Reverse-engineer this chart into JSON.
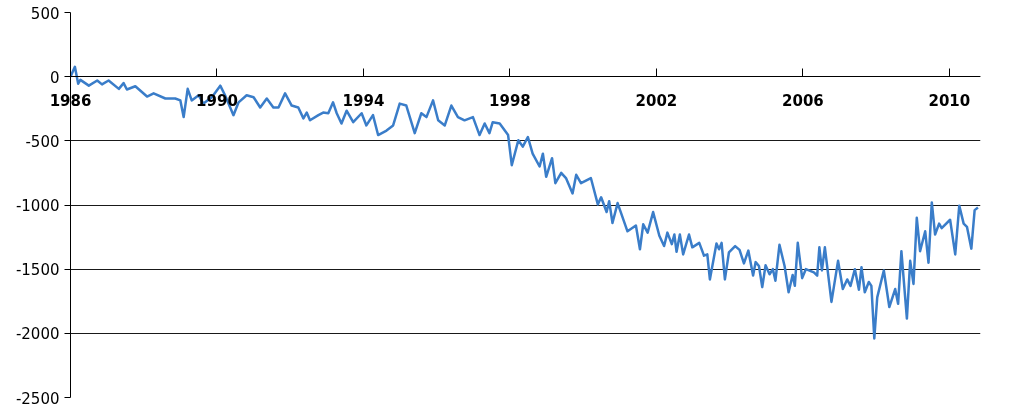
{
  "chart_data": {
    "type": "line",
    "xlim": [
      1986,
      2010.85
    ],
    "ylim": [
      -2500,
      500
    ],
    "xticks": [
      1986,
      1990,
      1994,
      1998,
      2002,
      2006,
      2010
    ],
    "yticks": [
      -2500,
      -2000,
      -1500,
      -1000,
      -500,
      0,
      500
    ],
    "grid": "y",
    "marker": "none",
    "line_style": "solid",
    "x": [
      1986.0,
      1986.12,
      1986.21,
      1986.27,
      1986.5,
      1986.73,
      1986.86,
      1987.04,
      1987.32,
      1987.45,
      1987.54,
      1987.77,
      1988.09,
      1988.27,
      1988.59,
      1988.86,
      1989.0,
      1989.09,
      1989.2,
      1989.31,
      1989.5,
      1989.63,
      1989.86,
      1990.09,
      1990.22,
      1990.45,
      1990.59,
      1990.81,
      1991.0,
      1991.18,
      1991.36,
      1991.54,
      1991.68,
      1991.86,
      1992.04,
      1992.22,
      1992.36,
      1992.45,
      1992.54,
      1992.77,
      1992.9,
      1993.04,
      1993.17,
      1993.27,
      1993.4,
      1993.54,
      1993.72,
      1993.95,
      1994.08,
      1994.26,
      1994.4,
      1994.63,
      1994.81,
      1994.99,
      1995.17,
      1995.4,
      1995.58,
      1995.72,
      1995.9,
      1996.04,
      1996.22,
      1996.4,
      1996.58,
      1996.76,
      1996.99,
      1997.17,
      1997.31,
      1997.44,
      1997.53,
      1997.72,
      1997.95,
      1998.05,
      1998.23,
      1998.35,
      1998.49,
      1998.62,
      1998.81,
      1998.9,
      1998.99,
      1999.15,
      1999.24,
      1999.4,
      1999.53,
      1999.71,
      1999.81,
      1999.94,
      2000.21,
      2000.4,
      2000.49,
      2000.64,
      2000.71,
      2000.8,
      2000.94,
      2001.21,
      2001.44,
      2001.55,
      2001.64,
      2001.76,
      2001.91,
      2002.08,
      2002.21,
      2002.3,
      2002.42,
      2002.49,
      2002.55,
      2002.64,
      2002.73,
      2002.89,
      2002.98,
      2003.17,
      2003.3,
      2003.39,
      2003.46,
      2003.64,
      2003.71,
      2003.78,
      2003.87,
      2003.98,
      2004.15,
      2004.27,
      2004.39,
      2004.51,
      2004.64,
      2004.71,
      2004.8,
      2004.89,
      2004.98,
      2005.09,
      2005.18,
      2005.25,
      2005.36,
      2005.5,
      2005.61,
      2005.72,
      2005.78,
      2005.86,
      2005.98,
      2006.08,
      2006.3,
      2006.39,
      2006.45,
      2006.52,
      2006.6,
      2006.78,
      2006.96,
      2007.09,
      2007.21,
      2007.3,
      2007.42,
      2007.53,
      2007.6,
      2007.69,
      2007.8,
      2007.87,
      2007.95,
      2008.03,
      2008.21,
      2008.36,
      2008.52,
      2008.6,
      2008.69,
      2008.84,
      2008.93,
      2009.02,
      2009.11,
      2009.2,
      2009.34,
      2009.43,
      2009.52,
      2009.61,
      2009.72,
      2009.79,
      2010.02,
      2010.16,
      2010.27,
      2010.39,
      2010.48,
      2010.6,
      2010.69,
      2010.78
    ],
    "series": [
      {
        "color": "#3a7dc9",
        "values": [
          0,
          77,
          -55,
          -25,
          -70,
          -30,
          -60,
          -30,
          -95,
          -50,
          -100,
          -75,
          -155,
          -130,
          -170,
          -170,
          -185,
          -315,
          -95,
          -185,
          -145,
          -210,
          -160,
          -70,
          -145,
          -300,
          -200,
          -145,
          -160,
          -240,
          -170,
          -240,
          -240,
          -130,
          -225,
          -240,
          -325,
          -280,
          -340,
          -300,
          -280,
          -285,
          -200,
          -285,
          -365,
          -265,
          -355,
          -285,
          -380,
          -300,
          -455,
          -420,
          -380,
          -210,
          -225,
          -440,
          -285,
          -315,
          -185,
          -340,
          -380,
          -225,
          -315,
          -340,
          -315,
          -455,
          -365,
          -440,
          -355,
          -365,
          -455,
          -690,
          -495,
          -545,
          -470,
          -600,
          -700,
          -600,
          -780,
          -635,
          -830,
          -750,
          -790,
          -910,
          -765,
          -830,
          -790,
          -995,
          -940,
          -1055,
          -970,
          -1140,
          -985,
          -1205,
          -1160,
          -1345,
          -1150,
          -1215,
          -1055,
          -1240,
          -1320,
          -1215,
          -1305,
          -1230,
          -1365,
          -1230,
          -1385,
          -1230,
          -1330,
          -1295,
          -1395,
          -1385,
          -1580,
          -1300,
          -1345,
          -1295,
          -1580,
          -1370,
          -1320,
          -1350,
          -1455,
          -1355,
          -1550,
          -1445,
          -1475,
          -1640,
          -1470,
          -1540,
          -1500,
          -1590,
          -1310,
          -1475,
          -1680,
          -1545,
          -1630,
          -1295,
          -1570,
          -1500,
          -1525,
          -1550,
          -1330,
          -1510,
          -1330,
          -1755,
          -1435,
          -1655,
          -1580,
          -1630,
          -1500,
          -1660,
          -1485,
          -1680,
          -1600,
          -1630,
          -2040,
          -1720,
          -1510,
          -1795,
          -1655,
          -1770,
          -1360,
          -1885,
          -1435,
          -1615,
          -1100,
          -1360,
          -1205,
          -1450,
          -980,
          -1230,
          -1145,
          -1180,
          -1115,
          -1385,
          -1005,
          -1145,
          -1170,
          -1340,
          -1040,
          -1020
        ]
      }
    ]
  }
}
